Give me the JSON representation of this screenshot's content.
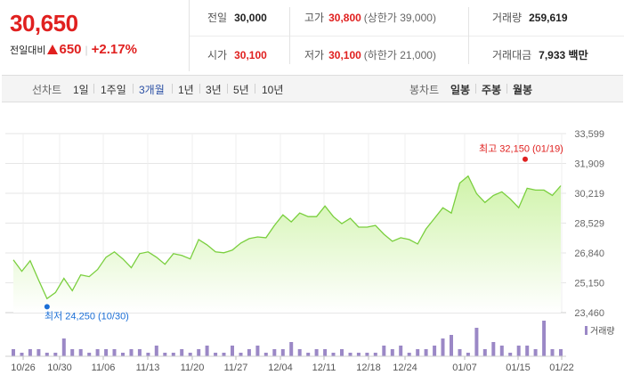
{
  "quote": {
    "price": "30,650",
    "change_label": "전일대비",
    "change_value": "650",
    "change_percent": "+2.17%"
  },
  "stats": {
    "prev_close": {
      "label": "전일",
      "value": "30,000"
    },
    "high": {
      "label": "고가",
      "value": "30,800",
      "note": "(상한가 39,000)"
    },
    "volume": {
      "label": "거래량",
      "value": "259,619"
    },
    "open": {
      "label": "시가",
      "value": "30,100"
    },
    "low": {
      "label": "저가",
      "value": "30,100",
      "note": "(하한가 21,000)"
    },
    "trade_amount": {
      "label": "거래대금",
      "value": "7,933 백만"
    }
  },
  "period_tabs": {
    "label": "선차트",
    "items": [
      "1일",
      "1주일",
      "3개월",
      "1년",
      "3년",
      "5년",
      "10년"
    ],
    "selected": "3개월"
  },
  "candle_tabs": {
    "label": "봉차트",
    "items": [
      "일봉",
      "주봉",
      "월봉"
    ]
  },
  "colors": {
    "up": "#e0201f",
    "line": "#7acf3e",
    "area_top": "#cff3a9",
    "volume_bar": "#9b88c6",
    "low_marker": "#1b6fd6",
    "selected_tab": "#2a4fa4"
  },
  "chart_data": {
    "type": "area",
    "y_ticks": [
      "33,599",
      "31,909",
      "30,219",
      "28,529",
      "26,840",
      "25,150",
      "23,460"
    ],
    "ylim": [
      23460,
      33599
    ],
    "x_ticks": [
      "10/26",
      "10/30",
      "11/06",
      "11/13",
      "11/20",
      "11/27",
      "12/04",
      "12/11",
      "12/18",
      "12/24",
      "01/07",
      "01/15",
      "01/22"
    ],
    "high_annotation": "최고 32,150 (01/19)",
    "low_annotation": "최저 24,250 (10/30)",
    "volume_label": "거래량",
    "price": [
      26450,
      25800,
      26400,
      25300,
      24250,
      24600,
      25400,
      24700,
      25600,
      25500,
      25900,
      26600,
      26900,
      26500,
      26000,
      26800,
      26900,
      26600,
      26200,
      26800,
      26700,
      26500,
      27600,
      27300,
      26900,
      26850,
      27000,
      27400,
      27650,
      27750,
      27700,
      28400,
      29000,
      28600,
      29100,
      28900,
      28900,
      29500,
      28900,
      28500,
      28800,
      28300,
      28300,
      28400,
      27900,
      27500,
      27700,
      27600,
      27350,
      28200,
      28800,
      29400,
      29100,
      30800,
      31200,
      30200,
      29700,
      30100,
      30300,
      29900,
      29400,
      30500,
      30400,
      30400,
      30100,
      30650
    ],
    "volume": [
      2,
      1,
      2,
      2,
      1,
      1,
      5,
      2,
      2,
      1,
      2,
      2,
      2,
      1,
      2,
      2,
      1,
      3,
      1,
      1,
      2,
      1,
      2,
      3,
      1,
      1,
      3,
      1,
      2,
      3,
      1,
      2,
      2,
      4,
      2,
      1,
      2,
      2,
      1,
      2,
      1,
      1,
      1,
      1,
      3,
      2,
      3,
      1,
      2,
      2,
      3,
      5,
      6,
      2,
      1,
      8,
      2,
      4,
      3,
      1,
      3,
      3,
      2,
      10,
      2,
      2
    ]
  }
}
